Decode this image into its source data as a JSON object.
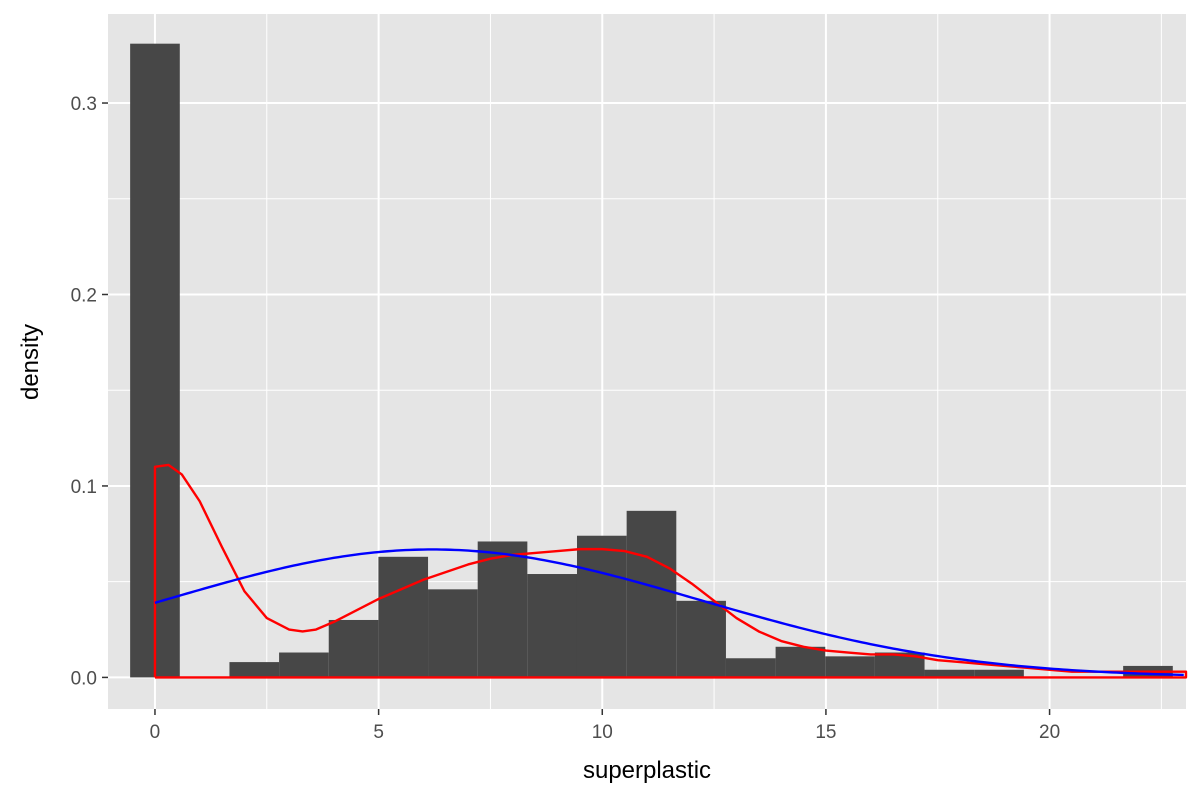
{
  "chart_data": {
    "type": "bar",
    "xlabel": "superplastic",
    "ylabel": "density",
    "xlim": [
      -1.05,
      23.05
    ],
    "ylim": [
      -0.0165,
      0.3465
    ],
    "x_ticks": [
      0,
      5,
      10,
      15,
      20
    ],
    "x_tick_labels": [
      "0",
      "5",
      "10",
      "15",
      "20"
    ],
    "x_minor_ticks": [
      2.5,
      7.5,
      12.5,
      17.5,
      22.5
    ],
    "y_ticks": [
      0.0,
      0.1,
      0.2,
      0.3
    ],
    "y_tick_labels": [
      "0.0",
      "0.1",
      "0.2",
      "0.3"
    ],
    "y_minor_ticks": [
      0.05,
      0.15,
      0.25
    ],
    "grid": true,
    "legend": "none",
    "colors": {
      "panel": "#e5e5e5",
      "grid": "#ffffff",
      "bars": "#474747",
      "density_kernel": "#ff0000",
      "density_normal": "#0000ff"
    },
    "histogram": {
      "bin_width": 1.11,
      "bins": [
        {
          "x": 0.0,
          "density": 0.331
        },
        {
          "x": 1.11,
          "density": 0.0
        },
        {
          "x": 2.22,
          "density": 0.008
        },
        {
          "x": 3.33,
          "density": 0.013
        },
        {
          "x": 4.44,
          "density": 0.03
        },
        {
          "x": 5.55,
          "density": 0.063
        },
        {
          "x": 6.66,
          "density": 0.046
        },
        {
          "x": 7.77,
          "density": 0.071
        },
        {
          "x": 8.88,
          "density": 0.054
        },
        {
          "x": 9.99,
          "density": 0.074
        },
        {
          "x": 11.1,
          "density": 0.087
        },
        {
          "x": 12.21,
          "density": 0.04
        },
        {
          "x": 13.32,
          "density": 0.01
        },
        {
          "x": 14.43,
          "density": 0.016
        },
        {
          "x": 15.54,
          "density": 0.011
        },
        {
          "x": 16.65,
          "density": 0.013
        },
        {
          "x": 17.76,
          "density": 0.004
        },
        {
          "x": 18.87,
          "density": 0.004
        },
        {
          "x": 19.98,
          "density": 0.0
        },
        {
          "x": 21.09,
          "density": 0.0
        },
        {
          "x": 22.2,
          "density": 0.006
        }
      ]
    },
    "series": [
      {
        "kind": "kernel-density",
        "points": [
          [
            0,
            0.0
          ],
          [
            0,
            0.11
          ],
          [
            0.3,
            0.111
          ],
          [
            0.6,
            0.106
          ],
          [
            1.0,
            0.092
          ],
          [
            1.5,
            0.068
          ],
          [
            2.0,
            0.045
          ],
          [
            2.5,
            0.031
          ],
          [
            3.0,
            0.025
          ],
          [
            3.3,
            0.024
          ],
          [
            3.6,
            0.025
          ],
          [
            4.0,
            0.029
          ],
          [
            4.5,
            0.035
          ],
          [
            5.0,
            0.041
          ],
          [
            5.5,
            0.046
          ],
          [
            6.0,
            0.051
          ],
          [
            6.5,
            0.055
          ],
          [
            7.0,
            0.059
          ],
          [
            7.5,
            0.062
          ],
          [
            8.0,
            0.064
          ],
          [
            8.5,
            0.065
          ],
          [
            9.0,
            0.066
          ],
          [
            9.5,
            0.067
          ],
          [
            10.0,
            0.067
          ],
          [
            10.5,
            0.066
          ],
          [
            11.0,
            0.063
          ],
          [
            11.5,
            0.057
          ],
          [
            12.0,
            0.049
          ],
          [
            12.5,
            0.04
          ],
          [
            13.0,
            0.031
          ],
          [
            13.5,
            0.024
          ],
          [
            14.0,
            0.019
          ],
          [
            14.5,
            0.016
          ],
          [
            15.0,
            0.014
          ],
          [
            15.5,
            0.013
          ],
          [
            16.0,
            0.012
          ],
          [
            16.5,
            0.012
          ],
          [
            17.0,
            0.011
          ],
          [
            17.5,
            0.009
          ],
          [
            18.0,
            0.008
          ],
          [
            18.5,
            0.007
          ],
          [
            19.0,
            0.006
          ],
          [
            19.5,
            0.005
          ],
          [
            20.0,
            0.004
          ],
          [
            20.5,
            0.003
          ],
          [
            21.0,
            0.003
          ],
          [
            21.5,
            0.003
          ],
          [
            22.0,
            0.003
          ],
          [
            22.5,
            0.003
          ],
          [
            23.05,
            0.003
          ],
          [
            23.05,
            0.0
          ],
          [
            0,
            0.0
          ]
        ]
      },
      {
        "kind": "normal-fit",
        "mean": 6.2,
        "sd": 5.97
      }
    ]
  }
}
